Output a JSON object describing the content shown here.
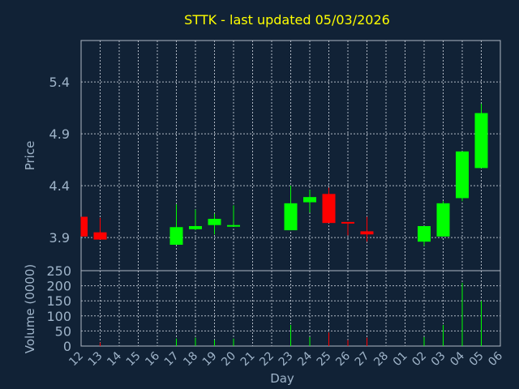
{
  "chart_data": {
    "type": "candlestick",
    "title": "STTK - last updated 05/03/2026",
    "xlabel": "Day",
    "price_panel": {
      "ylabel": "Price",
      "yticks": [
        3.9,
        4.4,
        4.9,
        5.4
      ],
      "ylim": [
        3.58,
        5.8
      ]
    },
    "volume_panel": {
      "ylabel": "Volume (0000)",
      "yticks": [
        0,
        50,
        100,
        150,
        200,
        250
      ],
      "ylim": [
        0,
        250
      ]
    },
    "x_labels": [
      "12",
      "13",
      "14",
      "15",
      "16",
      "17",
      "18",
      "19",
      "20",
      "21",
      "22",
      "23",
      "24",
      "25",
      "26",
      "27",
      "28",
      "01",
      "02",
      "03",
      "04",
      "05",
      "06"
    ],
    "candles": [
      {
        "day": "12",
        "open": 4.1,
        "close": 3.91,
        "high": 4.1,
        "low": 3.91,
        "volume": 0
      },
      {
        "day": "13",
        "open": 3.95,
        "close": 3.88,
        "high": 4.09,
        "low": 3.88,
        "volume": 12
      },
      {
        "day": "17",
        "open": 3.83,
        "close": 4.0,
        "high": 4.22,
        "low": 3.83,
        "volume": 25
      },
      {
        "day": "18",
        "open": 3.98,
        "close": 4.01,
        "high": 4.17,
        "low": 3.97,
        "volume": 28
      },
      {
        "day": "19",
        "open": 4.02,
        "close": 4.08,
        "high": 4.13,
        "low": 3.93,
        "volume": 20
      },
      {
        "day": "20",
        "open": 4.01,
        "close": 4.02,
        "high": 4.21,
        "low": 4.01,
        "volume": 25
      },
      {
        "day": "23",
        "open": 3.97,
        "close": 4.23,
        "high": 4.4,
        "low": 3.97,
        "volume": 70
      },
      {
        "day": "24",
        "open": 4.24,
        "close": 4.29,
        "high": 4.36,
        "low": 4.14,
        "volume": 30
      },
      {
        "day": "25",
        "open": 4.32,
        "close": 4.04,
        "high": 4.38,
        "low": 4.04,
        "volume": 45
      },
      {
        "day": "26",
        "open": 4.05,
        "close": 4.04,
        "high": 4.05,
        "low": 3.92,
        "volume": 20
      },
      {
        "day": "27",
        "open": 3.96,
        "close": 3.93,
        "high": 4.1,
        "low": 3.86,
        "volume": 28
      },
      {
        "day": "02",
        "open": 3.86,
        "close": 4.01,
        "high": 4.01,
        "low": 3.82,
        "volume": 30
      },
      {
        "day": "03",
        "open": 3.91,
        "close": 4.23,
        "high": 4.25,
        "low": 3.91,
        "volume": 70
      },
      {
        "day": "04",
        "open": 4.28,
        "close": 4.73,
        "high": 4.73,
        "low": 4.25,
        "volume": 210
      },
      {
        "day": "05",
        "open": 4.57,
        "close": 5.1,
        "high": 5.19,
        "low": 4.57,
        "volume": 150
      }
    ],
    "colors": {
      "background": "#112236",
      "up": "#00ff00",
      "down": "#ff0000",
      "grid": "#b0b8c4",
      "title": "#ffff00",
      "axis_text": "#9fb4c9"
    }
  }
}
